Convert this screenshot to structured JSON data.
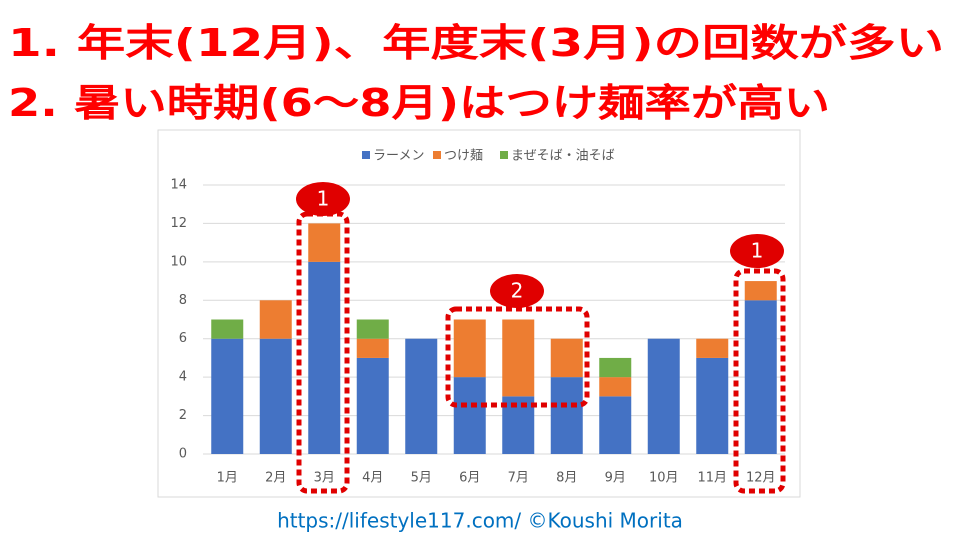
{
  "headings": [
    "1.  年末(12月)、年度末(3月)の回数が多い",
    "2.  暑い時期(6～8月)はつけ麺率が高い"
  ],
  "footer": "https://lifestyle117.com/  ©Koushi Morita",
  "annotations": [
    "1",
    "2",
    "1"
  ],
  "chart_data": {
    "type": "stacked_bar",
    "categories": [
      "1月",
      "2月",
      "3月",
      "4月",
      "5月",
      "6月",
      "7月",
      "8月",
      "9月",
      "10月",
      "11月",
      "12月"
    ],
    "series": [
      {
        "name": "ラーメン",
        "color": "#4472c4",
        "values": [
          6,
          6,
          10,
          5,
          6,
          4,
          3,
          4,
          3,
          6,
          5,
          8
        ]
      },
      {
        "name": "つけ麺",
        "color": "#ed7d31",
        "values": [
          0,
          2,
          2,
          1,
          0,
          3,
          4,
          2,
          1,
          0,
          1,
          1
        ]
      },
      {
        "name": "まぜそば・油そば",
        "color": "#70ad47",
        "values": [
          1,
          0,
          0,
          1,
          0,
          0,
          0,
          0,
          1,
          0,
          0,
          0
        ]
      }
    ],
    "ylim": [
      0,
      14
    ],
    "yticks": [
      0,
      2,
      4,
      6,
      8,
      10,
      12,
      14
    ],
    "grid": true,
    "legend": "top"
  }
}
